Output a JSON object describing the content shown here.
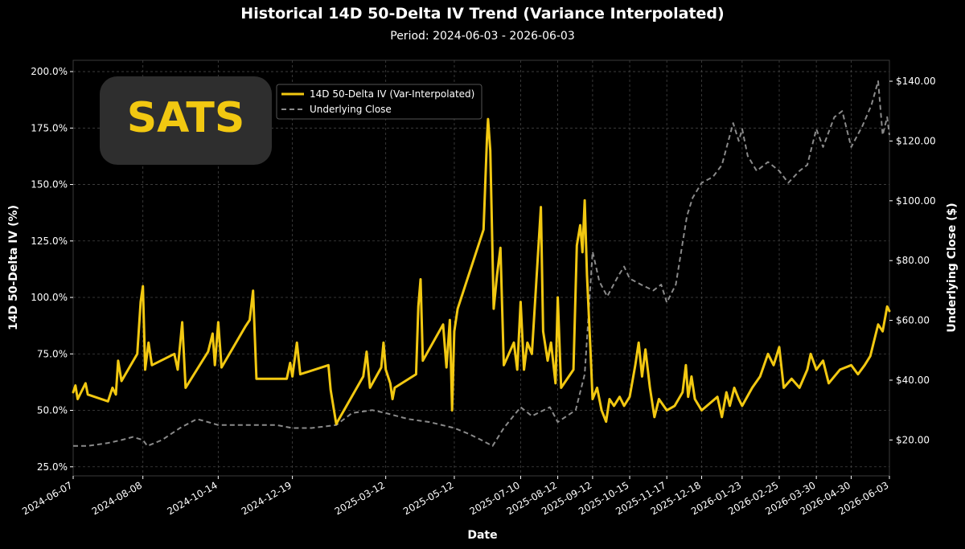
{
  "colors": {
    "background": "#000000",
    "iv_line": "#f2c811",
    "underlying_line": "#8a8a8a",
    "badge_bg": "#2e2e2e",
    "badge_text": "#f2c811"
  },
  "badge": {
    "ticker": "SATS"
  },
  "chart_data": {
    "type": "line",
    "title": "Historical 14D 50-Delta IV Trend (Variance Interpolated)",
    "subtitle": "Period: 2024-06-03 - 2026-06-03",
    "xlabel": "Date",
    "ylabel_left": "14D 50-Delta IV (%)",
    "ylabel_right": "Underlying Close ($)",
    "xlim": [
      "2024-06-07",
      "2026-06-03"
    ],
    "ylim_left": [
      21,
      205
    ],
    "ylim_right": [
      8,
      147
    ],
    "x_ticks": [
      "2024-06-07",
      "2024-08-08",
      "2024-10-14",
      "2024-12-19",
      "2025-03-12",
      "2025-05-12",
      "2025-07-10",
      "2025-08-12",
      "2025-09-12",
      "2025-10-15",
      "2025-11-17",
      "2025-12-18",
      "2026-01-23",
      "2026-02-25",
      "2026-03-30",
      "2026-04-30",
      "2026-06-03"
    ],
    "y_ticks_left": [
      "25.0%",
      "50.0%",
      "75.0%",
      "100.0%",
      "125.0%",
      "150.0%",
      "175.0%",
      "200.0%"
    ],
    "y_ticks_right": [
      "$20.00",
      "$40.00",
      "$60.00",
      "$80.00",
      "$100.00",
      "$120.00",
      "$140.00"
    ],
    "grid": true,
    "legend": {
      "position": "top-left",
      "entries": [
        "14D 50-Delta IV (Var-Interpolated)",
        "Underlying Close"
      ]
    },
    "series": [
      {
        "name": "14D 50-Delta IV (Var-Interpolated)",
        "axis": "left",
        "style": "solid",
        "points": [
          [
            "2024-06-07",
            58
          ],
          [
            "2024-06-09",
            61
          ],
          [
            "2024-06-11",
            55
          ],
          [
            "2024-06-14",
            58
          ],
          [
            "2024-06-18",
            62
          ],
          [
            "2024-06-20",
            57
          ],
          [
            "2024-07-08",
            54
          ],
          [
            "2024-07-12",
            60
          ],
          [
            "2024-07-15",
            57
          ],
          [
            "2024-07-17",
            72
          ],
          [
            "2024-07-20",
            63
          ],
          [
            "2024-08-03",
            75
          ],
          [
            "2024-08-06",
            98
          ],
          [
            "2024-08-08",
            105
          ],
          [
            "2024-08-10",
            68
          ],
          [
            "2024-08-13",
            80
          ],
          [
            "2024-08-16",
            70
          ],
          [
            "2024-09-05",
            75
          ],
          [
            "2024-09-08",
            68
          ],
          [
            "2024-09-12",
            89
          ],
          [
            "2024-09-15",
            60
          ],
          [
            "2024-10-05",
            76
          ],
          [
            "2024-10-09",
            84
          ],
          [
            "2024-10-11",
            70
          ],
          [
            "2024-10-14",
            89
          ],
          [
            "2024-10-17",
            69
          ],
          [
            "2024-11-07",
            87
          ],
          [
            "2024-11-11",
            90
          ],
          [
            "2024-11-14",
            103
          ],
          [
            "2024-11-17",
            64
          ],
          [
            "2024-12-14",
            64
          ],
          [
            "2024-12-17",
            71
          ],
          [
            "2024-12-19",
            65
          ],
          [
            "2024-12-23",
            80
          ],
          [
            "2024-12-26",
            66
          ],
          [
            "2025-01-20",
            70
          ],
          [
            "2025-01-22",
            59
          ],
          [
            "2025-01-27",
            44
          ],
          [
            "2025-02-20",
            65
          ],
          [
            "2025-02-23",
            76
          ],
          [
            "2025-02-26",
            60
          ],
          [
            "2025-03-08",
            69
          ],
          [
            "2025-03-10",
            80
          ],
          [
            "2025-03-12",
            68
          ],
          [
            "2025-03-16",
            62
          ],
          [
            "2025-03-18",
            55
          ],
          [
            "2025-03-20",
            60
          ],
          [
            "2025-04-08",
            66
          ],
          [
            "2025-04-10",
            96
          ],
          [
            "2025-04-12",
            108
          ],
          [
            "2025-04-14",
            72
          ],
          [
            "2025-05-02",
            88
          ],
          [
            "2025-05-05",
            69
          ],
          [
            "2025-05-08",
            90
          ],
          [
            "2025-05-10",
            50
          ],
          [
            "2025-05-12",
            85
          ],
          [
            "2025-05-15",
            95
          ],
          [
            "2025-06-07",
            130
          ],
          [
            "2025-06-10",
            170
          ],
          [
            "2025-06-11",
            179
          ],
          [
            "2025-06-13",
            165
          ],
          [
            "2025-06-16",
            95
          ],
          [
            "2025-06-19",
            110
          ],
          [
            "2025-06-22",
            122
          ],
          [
            "2025-06-25",
            70
          ],
          [
            "2025-07-04",
            80
          ],
          [
            "2025-07-07",
            68
          ],
          [
            "2025-07-10",
            98
          ],
          [
            "2025-07-13",
            68
          ],
          [
            "2025-07-16",
            80
          ],
          [
            "2025-07-20",
            75
          ],
          [
            "2025-07-28",
            140
          ],
          [
            "2025-07-30",
            85
          ],
          [
            "2025-08-03",
            72
          ],
          [
            "2025-08-06",
            80
          ],
          [
            "2025-08-10",
            62
          ],
          [
            "2025-08-12",
            100
          ],
          [
            "2025-08-15",
            60
          ],
          [
            "2025-08-26",
            68
          ],
          [
            "2025-08-29",
            123
          ],
          [
            "2025-09-01",
            132
          ],
          [
            "2025-09-03",
            120
          ],
          [
            "2025-09-05",
            143
          ],
          [
            "2025-09-07",
            110
          ],
          [
            "2025-09-10",
            78
          ],
          [
            "2025-09-12",
            55
          ],
          [
            "2025-09-16",
            60
          ],
          [
            "2025-09-20",
            50
          ],
          [
            "2025-09-24",
            45
          ],
          [
            "2025-09-27",
            55
          ],
          [
            "2025-10-01",
            52
          ],
          [
            "2025-10-06",
            56
          ],
          [
            "2025-10-10",
            52
          ],
          [
            "2025-10-15",
            56
          ],
          [
            "2025-10-20",
            70
          ],
          [
            "2025-10-23",
            80
          ],
          [
            "2025-10-26",
            65
          ],
          [
            "2025-10-29",
            77
          ],
          [
            "2025-11-02",
            60
          ],
          [
            "2025-11-06",
            47
          ],
          [
            "2025-11-10",
            55
          ],
          [
            "2025-11-17",
            50
          ],
          [
            "2025-11-24",
            52
          ],
          [
            "2025-12-01",
            58
          ],
          [
            "2025-12-04",
            70
          ],
          [
            "2025-12-06",
            56
          ],
          [
            "2025-12-09",
            65
          ],
          [
            "2025-12-12",
            55
          ],
          [
            "2025-12-18",
            50
          ],
          [
            "2025-12-25",
            53
          ],
          [
            "2026-01-01",
            56
          ],
          [
            "2026-01-05",
            47
          ],
          [
            "2026-01-09",
            58
          ],
          [
            "2026-01-12",
            52
          ],
          [
            "2026-01-16",
            60
          ],
          [
            "2026-01-20",
            55
          ],
          [
            "2026-01-23",
            52
          ],
          [
            "2026-02-01",
            60
          ],
          [
            "2026-02-08",
            65
          ],
          [
            "2026-02-15",
            75
          ],
          [
            "2026-02-20",
            70
          ],
          [
            "2026-02-25",
            78
          ],
          [
            "2026-03-01",
            60
          ],
          [
            "2026-03-08",
            64
          ],
          [
            "2026-03-15",
            60
          ],
          [
            "2026-03-22",
            68
          ],
          [
            "2026-03-25",
            75
          ],
          [
            "2026-03-30",
            68
          ],
          [
            "2026-04-05",
            72
          ],
          [
            "2026-04-10",
            62
          ],
          [
            "2026-04-20",
            68
          ],
          [
            "2026-04-30",
            70
          ],
          [
            "2026-05-06",
            66
          ],
          [
            "2026-05-12",
            70
          ],
          [
            "2026-05-17",
            74
          ],
          [
            "2026-05-24",
            88
          ],
          [
            "2026-05-28",
            85
          ],
          [
            "2026-06-01",
            96
          ],
          [
            "2026-06-03",
            94
          ]
        ]
      },
      {
        "name": "Underlying Close",
        "axis": "right",
        "style": "dashed",
        "points": [
          [
            "2024-06-07",
            18
          ],
          [
            "2024-06-20",
            18
          ],
          [
            "2024-07-08",
            19
          ],
          [
            "2024-07-20",
            20
          ],
          [
            "2024-07-30",
            21
          ],
          [
            "2024-08-08",
            20
          ],
          [
            "2024-08-12",
            18
          ],
          [
            "2024-08-25",
            20
          ],
          [
            "2024-09-10",
            24
          ],
          [
            "2024-09-25",
            27
          ],
          [
            "2024-10-05",
            26
          ],
          [
            "2024-10-14",
            25
          ],
          [
            "2024-11-01",
            25
          ],
          [
            "2024-11-20",
            25
          ],
          [
            "2024-12-05",
            25
          ],
          [
            "2024-12-19",
            24
          ],
          [
            "2025-01-05",
            24
          ],
          [
            "2025-01-27",
            25
          ],
          [
            "2025-02-10",
            29
          ],
          [
            "2025-02-28",
            30
          ],
          [
            "2025-03-12",
            29
          ],
          [
            "2025-04-01",
            27
          ],
          [
            "2025-04-20",
            26
          ],
          [
            "2025-05-12",
            24
          ],
          [
            "2025-05-25",
            22
          ],
          [
            "2025-06-05",
            20
          ],
          [
            "2025-06-15",
            18
          ],
          [
            "2025-06-25",
            24
          ],
          [
            "2025-07-10",
            31
          ],
          [
            "2025-07-20",
            28
          ],
          [
            "2025-08-05",
            31
          ],
          [
            "2025-08-12",
            26
          ],
          [
            "2025-08-20",
            28
          ],
          [
            "2025-08-28",
            30
          ],
          [
            "2025-09-05",
            42
          ],
          [
            "2025-09-12",
            83
          ],
          [
            "2025-09-18",
            73
          ],
          [
            "2025-09-25",
            68
          ],
          [
            "2025-10-05",
            75
          ],
          [
            "2025-10-10",
            78
          ],
          [
            "2025-10-15",
            74
          ],
          [
            "2025-10-25",
            72
          ],
          [
            "2025-11-05",
            70
          ],
          [
            "2025-11-12",
            72
          ],
          [
            "2025-11-17",
            66
          ],
          [
            "2025-11-25",
            72
          ],
          [
            "2025-12-05",
            95
          ],
          [
            "2025-12-10",
            101
          ],
          [
            "2025-12-18",
            106
          ],
          [
            "2025-12-28",
            108
          ],
          [
            "2026-01-05",
            112
          ],
          [
            "2026-01-10",
            119
          ],
          [
            "2026-01-15",
            126
          ],
          [
            "2026-01-20",
            120
          ],
          [
            "2026-01-23",
            124
          ],
          [
            "2026-01-28",
            115
          ],
          [
            "2026-02-05",
            110
          ],
          [
            "2026-02-15",
            113
          ],
          [
            "2026-02-25",
            110
          ],
          [
            "2026-03-05",
            106
          ],
          [
            "2026-03-15",
            110
          ],
          [
            "2026-03-22",
            112
          ],
          [
            "2026-03-30",
            124
          ],
          [
            "2026-04-05",
            118
          ],
          [
            "2026-04-15",
            128
          ],
          [
            "2026-04-22",
            130
          ],
          [
            "2026-04-30",
            118
          ],
          [
            "2026-05-10",
            125
          ],
          [
            "2026-05-18",
            132
          ],
          [
            "2026-05-24",
            140
          ],
          [
            "2026-05-28",
            122
          ],
          [
            "2026-06-01",
            128
          ],
          [
            "2026-06-03",
            122
          ]
        ]
      }
    ]
  }
}
